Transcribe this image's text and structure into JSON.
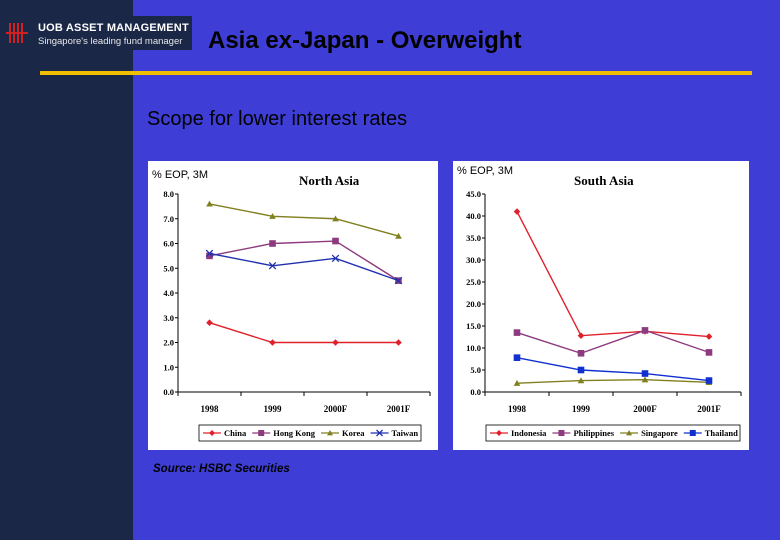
{
  "header": {
    "logo_name": "UOB ASSET MANAGEMENT",
    "logo_tagline": "Singapore's leading fund manager",
    "title": "Asia ex-Japan - Overweight"
  },
  "subtitle": "Scope for lower interest rates",
  "source": "Source: HSBC Securities",
  "colors": {
    "background": "#3e3ed6",
    "sidebar": "#1b2747",
    "rule": "#f0c000"
  },
  "chart_data": [
    {
      "type": "line",
      "title": "North Asia",
      "ylabel": "% EOP, 3M",
      "categories": [
        "1998",
        "1999",
        "2000F",
        "2001F"
      ],
      "ylim": [
        0,
        8
      ],
      "yticks": [
        "0.0",
        "1.0",
        "2.0",
        "3.0",
        "4.0",
        "5.0",
        "6.0",
        "7.0",
        "8.0"
      ],
      "legend_position": "bottom",
      "series": [
        {
          "name": "China",
          "values": [
            2.8,
            2.0,
            2.0,
            2.0
          ],
          "color": "#e0202a",
          "marker": "diamond"
        },
        {
          "name": "Hong Kong",
          "values": [
            5.5,
            6.0,
            6.1,
            4.5
          ],
          "color": "#8e3a7e",
          "marker": "square"
        },
        {
          "name": "Korea",
          "values": [
            7.6,
            7.1,
            7.0,
            6.3
          ],
          "color": "#808020",
          "marker": "triangle"
        },
        {
          "name": "Taiwan",
          "values": [
            5.6,
            5.1,
            5.4,
            4.5
          ],
          "color": "#2030b0",
          "marker": "x"
        }
      ]
    },
    {
      "type": "line",
      "title": "South Asia",
      "ylabel": "% EOP, 3M",
      "categories": [
        "1998",
        "1999",
        "2000F",
        "2001F"
      ],
      "ylim": [
        0,
        45
      ],
      "yticks": [
        "0.0",
        "5.0",
        "10.0",
        "15.0",
        "20.0",
        "25.0",
        "30.0",
        "35.0",
        "40.0",
        "45.0"
      ],
      "legend_position": "bottom",
      "series": [
        {
          "name": "Indonesia",
          "values": [
            41.0,
            12.8,
            13.8,
            12.6
          ],
          "color": "#e0202a",
          "marker": "diamond"
        },
        {
          "name": "Philippines",
          "values": [
            13.5,
            8.8,
            14.0,
            9.0
          ],
          "color": "#8e3a7e",
          "marker": "square"
        },
        {
          "name": "Singapore",
          "values": [
            2.0,
            2.6,
            2.8,
            2.2
          ],
          "color": "#808020",
          "marker": "triangle"
        },
        {
          "name": "Thailand",
          "values": [
            7.8,
            5.0,
            4.2,
            2.6
          ],
          "color": "#1030d0",
          "marker": "square"
        }
      ]
    }
  ]
}
